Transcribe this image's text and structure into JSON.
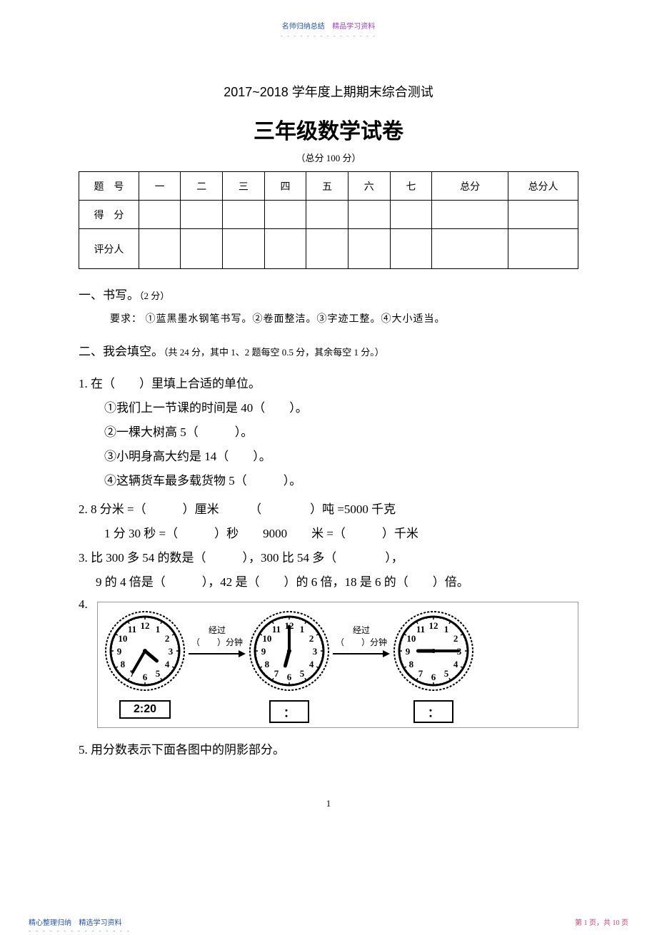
{
  "header": {
    "left": "名师归纳总结",
    "right": "精品学习资料",
    "dots": "- - - - - - - - - - - - - - -"
  },
  "examYear": "2017~2018 学年度上期期末综合测试",
  "examTitle": "三年级数学试卷",
  "totalScore": "（总分  100 分）",
  "scoreTable": {
    "row1": [
      "题　号",
      "一",
      "二",
      "三",
      "四",
      "五",
      "六",
      "七",
      "总分",
      "总分人"
    ],
    "row2": [
      "得　分",
      "",
      "",
      "",
      "",
      "",
      "",
      "",
      "",
      ""
    ],
    "row3": [
      "评分人",
      "",
      "",
      "",
      "",
      "",
      "",
      "",
      "",
      ""
    ]
  },
  "sec1": {
    "head": "一、书写。",
    "pts": "（2 分）",
    "req": "要求：  ①蓝黑墨水钢笔书写。②卷面整洁。③字迹工整。④大小适当。"
  },
  "sec2": {
    "head": "二、我会填空。",
    "pts": "（共  24 分，其中  1、2 题每空  0.5  分，其余每空   1 分。）"
  },
  "q1": {
    "stem": "1.  在（　　）里填上合适的单位。",
    "a": "①我们上一节课的时间是    40（　　）。",
    "b": "②一棵大树高   5（　　　）。",
    "c": "③小明身高大约是    14（　　）。",
    "d": "④这辆货车最多载货物    5（　　　）。"
  },
  "q2": {
    "l1": "2.  8   分米 =（　　　）厘米　　　（　　　　）吨 =5000 千克",
    "l2": "1 分 30 秒 =（　　　）秒　　9000　　米 =（　　　）千米"
  },
  "q3": {
    "l1": "3.   比 300 多 54 的数是（　　　），300 比 54 多（　　　　），",
    "l2": "9 的 4 倍是（　　　），42 是（　　）的 6 倍，18 是 6 的（　　）倍。"
  },
  "q4": {
    "num": "4.",
    "pass1": "经过",
    "blank1": "（　　）分钟",
    "pass2": "经过",
    "blank2": "（　　）分钟",
    "time1": "2:20",
    "time2": "：",
    "time3": "：",
    "clock1": {
      "hourAngle": 130,
      "minAngle": 210
    },
    "clock2": {
      "hourAngle": 195,
      "minAngle": 0
    },
    "clock3": {
      "hourAngle": 270,
      "minAngle": 90
    }
  },
  "q5": "5.   用分数表示下面各图中的阴影部分。",
  "pageNum": "1",
  "footer": {
    "leftA": "精心整理归纳",
    "leftB": "精选学习资料",
    "dots": "- - - - - - - - - - - - - - -",
    "right": "第  1 页，共  10 页"
  }
}
